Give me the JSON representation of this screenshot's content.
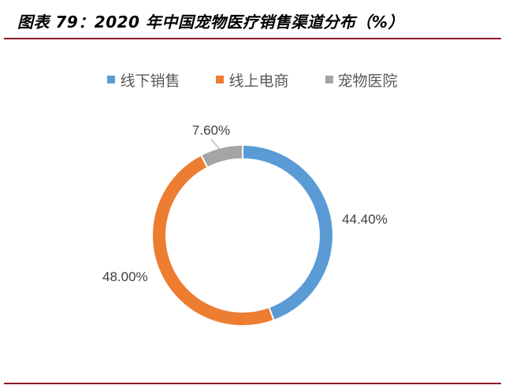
{
  "header": {
    "title": "图表 79：2020 年中国宠物医疗销售渠道分布（%）"
  },
  "chart_data": {
    "type": "pie",
    "variant": "donut",
    "categories": [
      "线下销售",
      "线上电商",
      "宠物医院"
    ],
    "values": [
      44.4,
      48.0,
      7.6
    ],
    "value_labels": [
      "44.40%",
      "48.00%",
      "7.60%"
    ],
    "colors": [
      "#5b9bd5",
      "#ed7d31",
      "#a5a5a5"
    ],
    "legend_position": "top"
  }
}
